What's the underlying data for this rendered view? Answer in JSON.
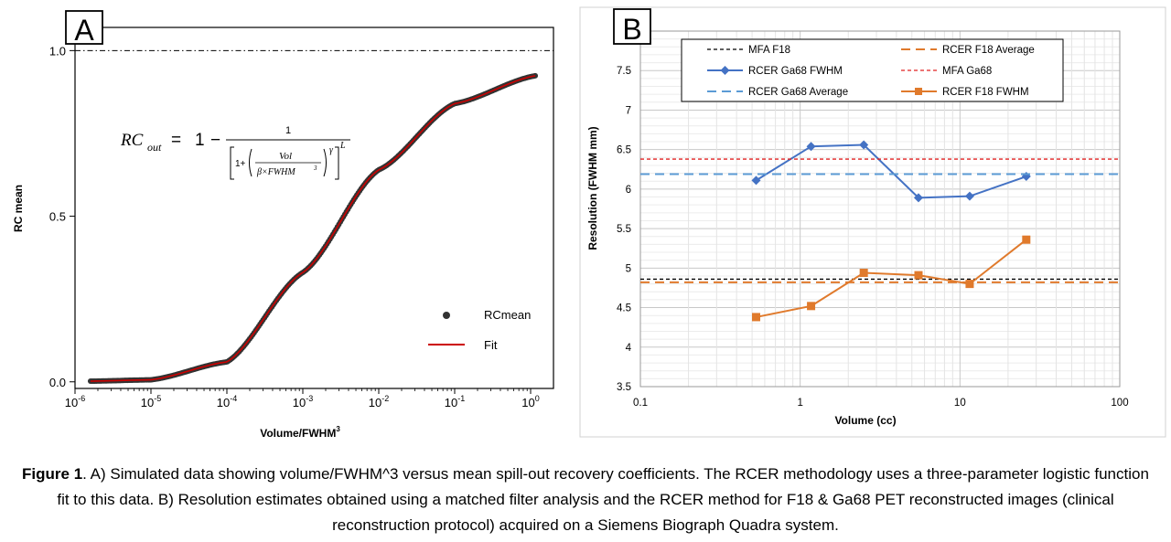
{
  "panels": [
    {
      "panel_label": "A",
      "equation": {
        "lhs": "RC",
        "lhs_sub": "out",
        "equals": "=",
        "one": "1",
        "minus": "−",
        "numerator": "1",
        "den_one_plus": "1+",
        "vol": "Vol",
        "beta_fwhm": "β×FWHM",
        "cube": "3",
        "gamma": "γ",
        "L": "L"
      }
    },
    {
      "panel_label": "B"
    }
  ],
  "chart_data": [
    {
      "type": "scatter",
      "xlabel": "Volume/FWHM",
      "xlabel_sup": "3",
      "ylabel": "RC mean",
      "x_scale": "log",
      "xlim": [
        1e-06,
        2
      ],
      "ylim": [
        -0.02,
        1.07
      ],
      "x_tick_values": [
        1e-06,
        1e-05,
        0.0001,
        0.001,
        0.01,
        0.1,
        1
      ],
      "x_tick_labels": [
        {
          "base": "10",
          "exp": "-6"
        },
        {
          "base": "10",
          "exp": "-5"
        },
        {
          "base": "10",
          "exp": "-4"
        },
        {
          "base": "10",
          "exp": "-3"
        },
        {
          "base": "10",
          "exp": "-2"
        },
        {
          "base": "10",
          "exp": "-1"
        },
        {
          "base": "10",
          "exp": "0"
        }
      ],
      "y_ticks": [
        0,
        0.5,
        1
      ],
      "y_tick_labels": [
        "0.0",
        "0.5",
        "1.0"
      ],
      "reference_line": {
        "y": 1.0,
        "style": "dash-dot"
      },
      "series": [
        {
          "name": "RCmean",
          "kind": "points",
          "color": "#333333",
          "x_range": [
            1.6e-06,
            1.15
          ],
          "count": 300
        },
        {
          "name": "Fit",
          "kind": "line",
          "color": "#cc0000",
          "x_range": [
            1.6e-06,
            1.15
          ]
        }
      ],
      "sigmoid_samples": [
        {
          "x": 1.6e-06,
          "y": 0.002
        },
        {
          "x": 1e-05,
          "y": 0.006
        },
        {
          "x": 0.0001,
          "y": 0.06
        },
        {
          "x": 0.001,
          "y": 0.33
        },
        {
          "x": 0.01,
          "y": 0.64
        },
        {
          "x": 0.1,
          "y": 0.84
        },
        {
          "x": 1.15,
          "y": 0.924
        }
      ],
      "legend_position": "bottom-right",
      "grid": false
    },
    {
      "type": "line",
      "xlabel": "Volume (cc)",
      "ylabel": "Resolution (FWHM mm)",
      "x_scale": "log",
      "xlim": [
        0.1,
        100
      ],
      "ylim": [
        3.5,
        8
      ],
      "x_ticks": [
        0.1,
        1,
        10,
        100
      ],
      "x_tick_labels": [
        "0.1",
        "1",
        "10",
        "100"
      ],
      "y_ticks": [
        3.5,
        4,
        4.5,
        5,
        5.5,
        6,
        6.5,
        7,
        7.5
      ],
      "y_tick_labels": [
        "3.5",
        "4",
        "4.5",
        "5",
        "5.5",
        "6",
        "6.5",
        "7",
        "7.5"
      ],
      "grid": true,
      "legend_position": "top",
      "series": [
        {
          "name": "MFA F18",
          "kind": "hline",
          "y": 4.86,
          "color": "#000000",
          "dash": "4,3"
        },
        {
          "name": "RCER F18 Average",
          "kind": "hline",
          "y": 4.82,
          "color": "#e07a2c",
          "dash": "10,6"
        },
        {
          "name": "RCER Ga68 FWHM",
          "kind": "line",
          "marker": "diamond",
          "color": "#4472c4",
          "x": [
            0.53,
            1.17,
            2.5,
            5.5,
            11.5,
            26
          ],
          "y": [
            6.11,
            6.54,
            6.56,
            5.89,
            5.91,
            6.16
          ]
        },
        {
          "name": "MFA Ga68",
          "kind": "hline",
          "y": 6.38,
          "color": "#e02020",
          "dash": "4,3"
        },
        {
          "name": "RCER Ga68 Average",
          "kind": "hline",
          "y": 6.19,
          "color": "#5b9bd5",
          "dash": "10,6"
        },
        {
          "name": "RCER F18 FWHM",
          "kind": "line",
          "marker": "square",
          "color": "#e07a2c",
          "x": [
            0.53,
            1.17,
            2.5,
            5.5,
            11.5,
            26
          ],
          "y": [
            4.38,
            4.52,
            4.94,
            4.91,
            4.8,
            5.36
          ]
        }
      ]
    }
  ],
  "caption": {
    "bold": "Figure 1",
    "text": ". A) Simulated data showing volume/FWHM^3 versus mean spill-out recovery coefficients. The RCER methodology uses a three-parameter logistic function fit to this data. B) Resolution estimates obtained using a matched filter analysis and the RCER method for F18 & Ga68 PET reconstructed images (clinical reconstruction protocol) acquired on a Siemens Biograph Quadra system."
  }
}
